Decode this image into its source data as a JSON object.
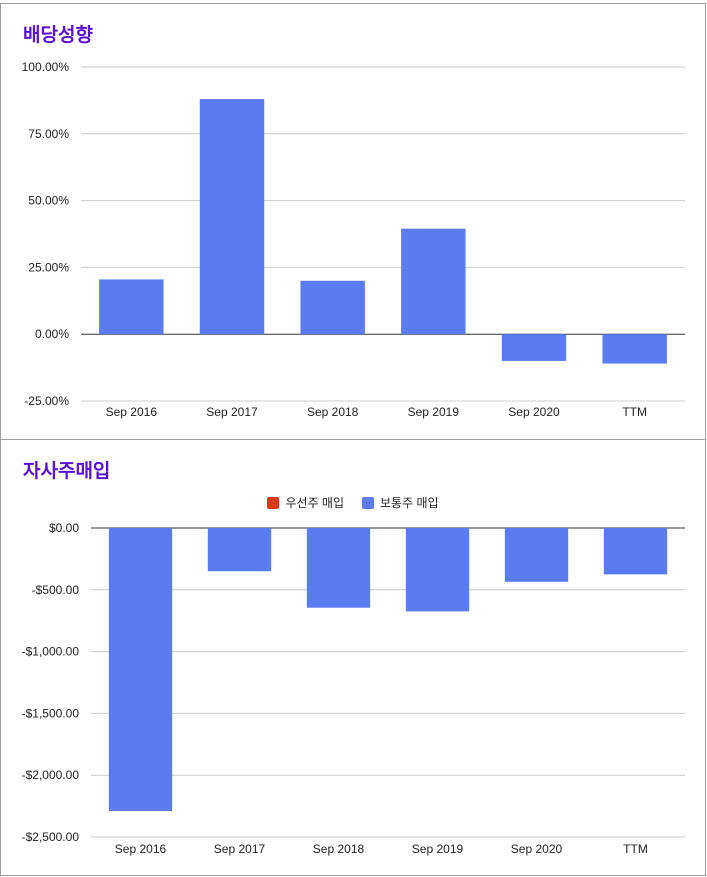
{
  "chart_data": [
    {
      "type": "bar",
      "title": "배당성향",
      "categories": [
        "Sep 2016",
        "Sep 2017",
        "Sep 2018",
        "Sep 2019",
        "Sep 2020",
        "TTM"
      ],
      "values": [
        20.5,
        88,
        20,
        39.5,
        -10,
        -11
      ],
      "ylim": [
        -25,
        100
      ],
      "yticks": [
        "100.00%",
        "75.00%",
        "50.00%",
        "25.00%",
        "0.00%",
        "-25.00%"
      ],
      "ytick_values": [
        100,
        75,
        50,
        25,
        0,
        -25
      ],
      "color": "#5b7cf0",
      "grid": true
    },
    {
      "type": "bar",
      "title": "자사주매입",
      "categories": [
        "Sep 2016",
        "Sep 2017",
        "Sep 2018",
        "Sep 2019",
        "Sep 2020",
        "TTM"
      ],
      "series": [
        {
          "name": "우선주 매입",
          "color": "#dc3912",
          "values": [
            0,
            0,
            0,
            0,
            0,
            0
          ]
        },
        {
          "name": "보통주 매입",
          "color": "#5b7cf0",
          "values": [
            -2290,
            -350,
            -645,
            -675,
            -435,
            -375
          ]
        }
      ],
      "ylim": [
        -2500,
        0
      ],
      "yticks": [
        "$0.00",
        "-$500.00",
        "-$1,000.00",
        "-$1,500.00",
        "-$2,000.00",
        "-$2,500.00"
      ],
      "ytick_values": [
        0,
        -500,
        -1000,
        -1500,
        -2000,
        -2500
      ],
      "legend": "top",
      "grid": true
    }
  ]
}
